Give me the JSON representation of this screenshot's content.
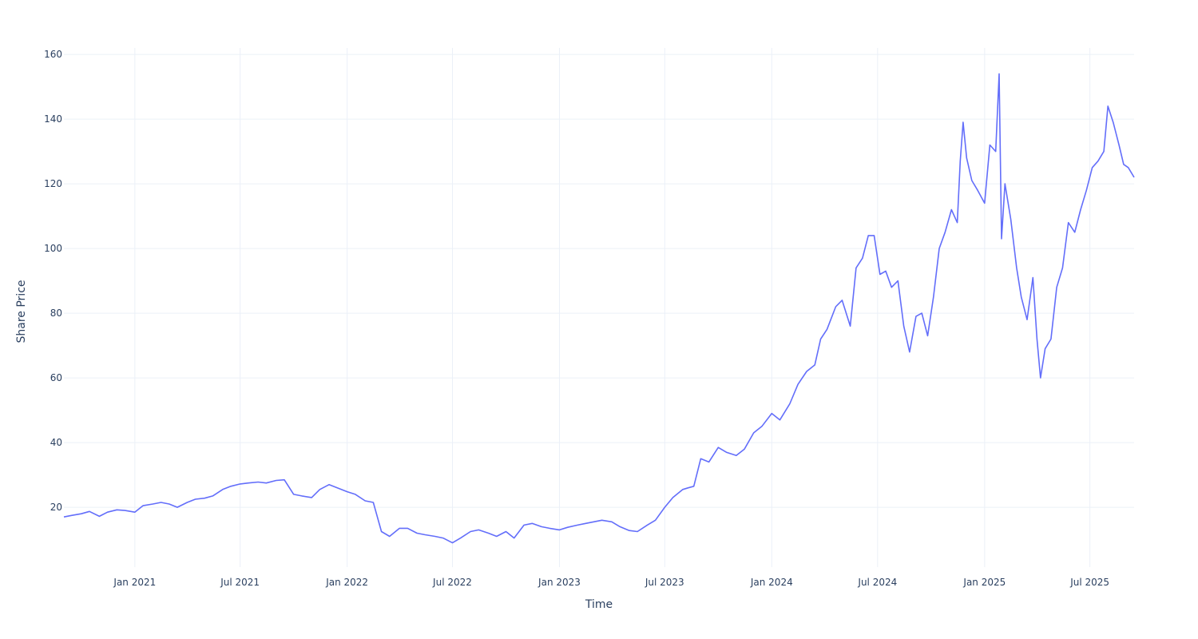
{
  "chart_data": {
    "type": "line",
    "title": "",
    "xlabel": "Time",
    "ylabel": "Share Price",
    "x_range": [
      "2020-09-01",
      "2025-09-15"
    ],
    "ylim": [
      1.5,
      162
    ],
    "grid": true,
    "legend": "none",
    "series_color": "#636efa",
    "y_ticks": [
      {
        "value": 20,
        "label": "20"
      },
      {
        "value": 40,
        "label": "40"
      },
      {
        "value": 60,
        "label": "60"
      },
      {
        "value": 80,
        "label": "80"
      },
      {
        "value": 100,
        "label": "100"
      },
      {
        "value": 120,
        "label": "120"
      },
      {
        "value": 140,
        "label": "140"
      },
      {
        "value": 160,
        "label": "160"
      }
    ],
    "x_ticks": [
      {
        "date": "2021-01-01",
        "label": "Jan 2021"
      },
      {
        "date": "2021-07-01",
        "label": "Jul 2021"
      },
      {
        "date": "2022-01-01",
        "label": "Jan 2022"
      },
      {
        "date": "2022-07-01",
        "label": "Jul 2022"
      },
      {
        "date": "2023-01-01",
        "label": "Jan 2023"
      },
      {
        "date": "2023-07-01",
        "label": "Jul 2023"
      },
      {
        "date": "2024-01-01",
        "label": "Jan 2024"
      },
      {
        "date": "2024-07-01",
        "label": "Jul 2024"
      },
      {
        "date": "2025-01-01",
        "label": "Jan 2025"
      },
      {
        "date": "2025-07-01",
        "label": "Jul 2025"
      }
    ],
    "series": [
      {
        "x": [
          "2020-09-01",
          "2020-09-15",
          "2020-10-01",
          "2020-10-15",
          "2020-11-01",
          "2020-11-15",
          "2020-12-01",
          "2020-12-15",
          "2021-01-01",
          "2021-01-15",
          "2021-02-01",
          "2021-02-15",
          "2021-03-01",
          "2021-03-15",
          "2021-04-01",
          "2021-04-15",
          "2021-05-01",
          "2021-05-15",
          "2021-06-01",
          "2021-06-15",
          "2021-07-01",
          "2021-07-15",
          "2021-08-01",
          "2021-08-15",
          "2021-09-01",
          "2021-09-15",
          "2021-10-01",
          "2021-10-15",
          "2021-11-01",
          "2021-11-15",
          "2021-12-01",
          "2021-12-15",
          "2022-01-01",
          "2022-01-15",
          "2022-02-01",
          "2022-02-15",
          "2022-03-01",
          "2022-03-15",
          "2022-04-01",
          "2022-04-15",
          "2022-05-01",
          "2022-05-15",
          "2022-06-01",
          "2022-06-15",
          "2022-07-01",
          "2022-07-15",
          "2022-08-01",
          "2022-08-15",
          "2022-09-01",
          "2022-09-15",
          "2022-10-01",
          "2022-10-15",
          "2022-11-01",
          "2022-11-15",
          "2022-12-01",
          "2022-12-15",
          "2023-01-01",
          "2023-01-15",
          "2023-02-01",
          "2023-02-15",
          "2023-03-01",
          "2023-03-15",
          "2023-04-01",
          "2023-04-15",
          "2023-05-01",
          "2023-05-15",
          "2023-06-01",
          "2023-06-15",
          "2023-07-01",
          "2023-07-15",
          "2023-08-01",
          "2023-08-10",
          "2023-08-20",
          "2023-09-01",
          "2023-09-15",
          "2023-10-01",
          "2023-10-15",
          "2023-11-01",
          "2023-11-15",
          "2023-12-01",
          "2023-12-15",
          "2024-01-01",
          "2024-01-15",
          "2024-02-01",
          "2024-02-15",
          "2024-03-01",
          "2024-03-15",
          "2024-03-25",
          "2024-04-05",
          "2024-04-20",
          "2024-05-01",
          "2024-05-15",
          "2024-05-25",
          "2024-06-05",
          "2024-06-15",
          "2024-06-25",
          "2024-07-05",
          "2024-07-15",
          "2024-07-25",
          "2024-08-05",
          "2024-08-15",
          "2024-08-25",
          "2024-09-05",
          "2024-09-15",
          "2024-09-25",
          "2024-10-05",
          "2024-10-15",
          "2024-10-25",
          "2024-11-05",
          "2024-11-15",
          "2024-11-20",
          "2024-11-25",
          "2024-12-01",
          "2024-12-10",
          "2024-12-20",
          "2025-01-01",
          "2025-01-10",
          "2025-01-20",
          "2025-01-26",
          "2025-01-30",
          "2025-02-05",
          "2025-02-15",
          "2025-02-25",
          "2025-03-05",
          "2025-03-15",
          "2025-03-25",
          "2025-04-01",
          "2025-04-07",
          "2025-04-15",
          "2025-04-25",
          "2025-05-05",
          "2025-05-15",
          "2025-05-25",
          "2025-06-05",
          "2025-06-15",
          "2025-06-25",
          "2025-07-05",
          "2025-07-15",
          "2025-07-25",
          "2025-08-01",
          "2025-08-10",
          "2025-08-20",
          "2025-08-28",
          "2025-09-05",
          "2025-09-15"
        ],
        "y": [
          17.0,
          17.5,
          18.0,
          18.7,
          17.2,
          18.5,
          19.2,
          19.0,
          18.5,
          20.5,
          21.0,
          21.5,
          21.0,
          20.0,
          21.5,
          22.5,
          22.8,
          23.5,
          25.5,
          26.5,
          27.2,
          27.5,
          27.8,
          27.5,
          28.3,
          28.5,
          24.0,
          23.5,
          23.0,
          25.5,
          27.0,
          26.0,
          24.8,
          24.0,
          22.0,
          21.5,
          12.5,
          11.0,
          13.5,
          13.5,
          12.0,
          11.5,
          11.0,
          10.5,
          9.0,
          10.5,
          12.5,
          13.0,
          12.0,
          11.0,
          12.5,
          10.5,
          14.5,
          15.0,
          14.0,
          13.5,
          13.0,
          13.8,
          14.5,
          15.0,
          15.5,
          16.0,
          15.5,
          14.0,
          12.8,
          12.5,
          14.5,
          16.0,
          20.0,
          23.0,
          25.5,
          26.0,
          26.5,
          35.0,
          34.0,
          38.5,
          37.0,
          36.0,
          38.0,
          43.0,
          45.0,
          49.0,
          47.0,
          52.0,
          58.0,
          62.0,
          64.0,
          72.0,
          75.0,
          82.0,
          84.0,
          76.0,
          94.0,
          97.0,
          104.0,
          104.0,
          92.0,
          93.0,
          88.0,
          90.0,
          76.0,
          68.0,
          79.0,
          80.0,
          73.0,
          85.0,
          100.0,
          105.0,
          112.0,
          108.0,
          127.0,
          139.0,
          128.0,
          121.0,
          118.0,
          114.0,
          132.0,
          130.0,
          154.0,
          103.0,
          120.0,
          109.0,
          94.0,
          85.0,
          78.0,
          91.0,
          72.0,
          60.0,
          69.0,
          72.0,
          88.0,
          94.0,
          108.0,
          105.0,
          112.0,
          118.0,
          125.0,
          127.0,
          130.0,
          144.0,
          139.0,
          132.0,
          126.0,
          125.0,
          122.0
        ]
      }
    ]
  }
}
